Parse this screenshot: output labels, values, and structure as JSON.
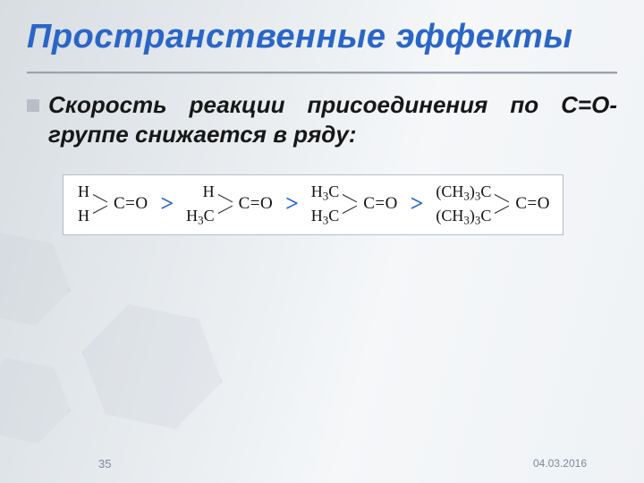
{
  "title": "Пространственные эффекты",
  "bullet_text": "Скорость реакции присоединения по С=О-группе снижается в ряду:",
  "molecules": [
    {
      "top": "H",
      "bot": "H",
      "top_html": "H",
      "bot_html": "H"
    },
    {
      "top": "H",
      "bot": "H3C",
      "top_html": "H",
      "bot_html": "H<sub>3</sub>C"
    },
    {
      "top": "H3C",
      "bot": "H3C",
      "top_html": "H<sub>3</sub>C",
      "bot_html": "H<sub>3</sub>C"
    },
    {
      "top": "(CH3)3C",
      "bot": "(CH3)3C",
      "top_html": "(CH<sub>3</sub>)<sub>3</sub>C",
      "bot_html": "(CH<sub>3</sub>)<sub>3</sub>C"
    }
  ],
  "carbonyl_label": "C=O",
  "comparison_symbol": ">",
  "page_number": "35",
  "date": "04.03.2016",
  "colors": {
    "title": "#2a66c8",
    "gt": "#2a66c8",
    "body_text": "#171717",
    "box_bg": "#ffffff",
    "box_border": "#b6bdc4",
    "footer_text": "#7d8996"
  }
}
